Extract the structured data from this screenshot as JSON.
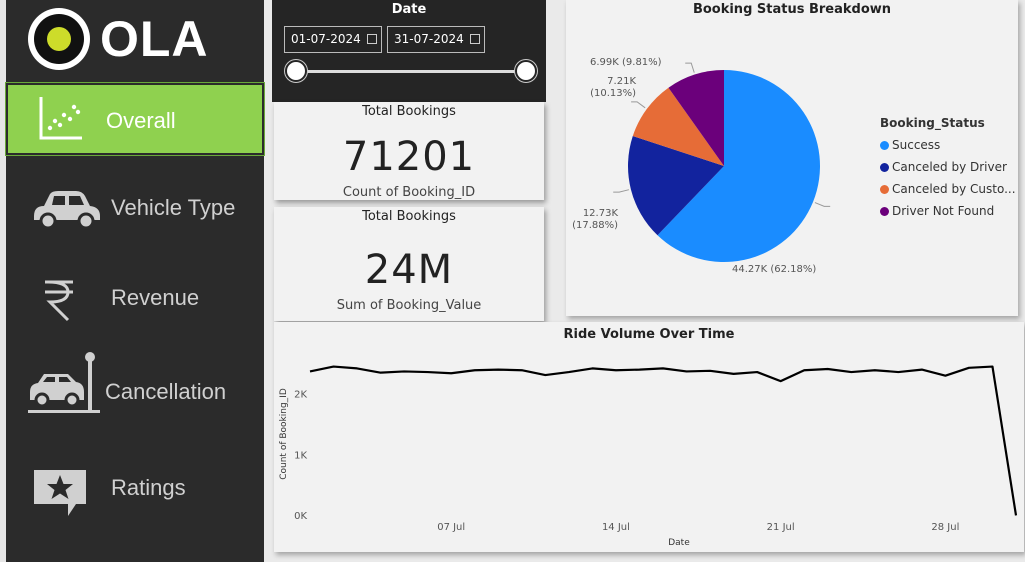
{
  "app": {
    "logo_text": "OLA"
  },
  "sidebar": {
    "items": [
      {
        "label": "Overall",
        "icon": "scatter-chart-icon",
        "active": true
      },
      {
        "label": "Vehicle Type",
        "icon": "car-icon",
        "active": false
      },
      {
        "label": "Revenue",
        "icon": "rupee-icon",
        "active": false
      },
      {
        "label": "Cancellation",
        "icon": "car-crash-icon",
        "active": false
      },
      {
        "label": "Ratings",
        "icon": "star-review-icon",
        "active": false
      }
    ]
  },
  "date_filter": {
    "title": "Date",
    "start": "01-07-2024",
    "end": "31-07-2024"
  },
  "cards": [
    {
      "title": "Total Bookings",
      "value": "71201",
      "subtitle": "Count of Booking_ID"
    },
    {
      "title": "Total Bookings",
      "value": "24M",
      "subtitle": "Sum of Booking_Value"
    }
  ],
  "chart_data": [
    {
      "type": "pie",
      "title": "Booking Status Breakdown",
      "legend_title": "Booking_Status",
      "legend_position": "right",
      "slices": [
        {
          "name": "Success",
          "label": "Success",
          "value": 44270,
          "display": "44.27K (62.18%)",
          "color": "#1a8cff"
        },
        {
          "name": "Canceled by Driver",
          "label": "Canceled by Driver",
          "value": 12730,
          "display": "12.73K (17.88%)",
          "color": "#12239e"
        },
        {
          "name": "Canceled by Customer",
          "label": "Canceled by Custo...",
          "value": 7210,
          "display": "7.21K (10.13%)",
          "color": "#e66c37"
        },
        {
          "name": "Driver Not Found",
          "label": "Driver Not Found",
          "value": 6990,
          "display": "6.99K (9.81%)",
          "color": "#6b007b"
        }
      ]
    },
    {
      "type": "line",
      "title": "Ride Volume Over Time",
      "xlabel": "Date",
      "ylabel": "Count of Booking_ID",
      "ylim": [
        0,
        2700
      ],
      "y_ticks": [
        "0K",
        "1K",
        "2K"
      ],
      "x_ticks": [
        "07 Jul",
        "14 Jul",
        "21 Jul",
        "28 Jul"
      ],
      "grid": false,
      "series": [
        {
          "color": "#000000",
          "x": [
            1,
            2,
            3,
            4,
            5,
            6,
            7,
            8,
            9,
            10,
            11,
            12,
            13,
            14,
            15,
            16,
            17,
            18,
            19,
            20,
            21,
            22,
            23,
            24,
            25,
            26,
            27,
            28,
            29,
            30,
            31
          ],
          "values": [
            2380,
            2460,
            2430,
            2360,
            2380,
            2370,
            2350,
            2400,
            2410,
            2400,
            2320,
            2370,
            2430,
            2400,
            2410,
            2430,
            2380,
            2390,
            2340,
            2370,
            2220,
            2400,
            2420,
            2370,
            2400,
            2370,
            2410,
            2310,
            2440,
            2460,
            10
          ]
        }
      ]
    }
  ]
}
